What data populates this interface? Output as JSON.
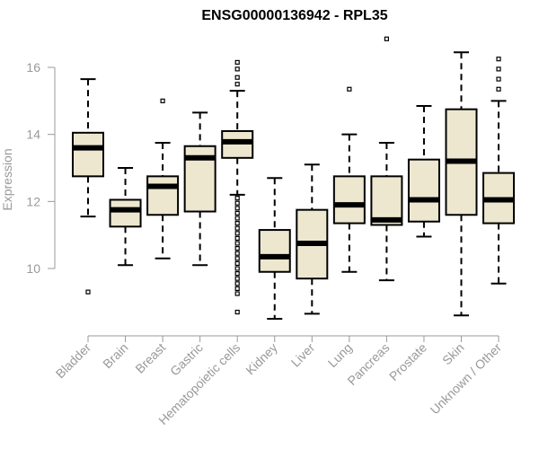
{
  "chart_data": {
    "type": "boxplot",
    "title": "ENSG00000136942 - RPL35",
    "xlabel": "",
    "ylabel": "Expression",
    "ylim": [
      8.4,
      17.0
    ],
    "yticks": [
      10,
      12,
      14,
      16
    ],
    "box_fill": "#ede7cf",
    "categories": [
      "Bladder",
      "Brain",
      "Breast",
      "Gastric",
      "Hematopoietic cells",
      "Kidney",
      "Liver",
      "Lung",
      "Pancreas",
      "Prostate",
      "Skin",
      "Unknown / Other"
    ],
    "boxes": [
      {
        "name": "Bladder",
        "whisker_low": 11.55,
        "q1": 12.75,
        "median": 13.6,
        "q3": 14.05,
        "whisker_high": 15.65,
        "outliers": [
          9.3
        ]
      },
      {
        "name": "Brain",
        "whisker_low": 10.1,
        "q1": 11.25,
        "median": 11.75,
        "q3": 12.05,
        "whisker_high": 13.0,
        "outliers": []
      },
      {
        "name": "Breast",
        "whisker_low": 10.3,
        "q1": 11.6,
        "median": 12.45,
        "q3": 12.75,
        "whisker_high": 13.75,
        "outliers": [
          15.0
        ]
      },
      {
        "name": "Gastric",
        "whisker_low": 10.1,
        "q1": 11.7,
        "median": 13.3,
        "q3": 13.65,
        "whisker_high": 14.65,
        "outliers": []
      },
      {
        "name": "Hematopoietic cells",
        "whisker_low": 12.2,
        "q1": 13.3,
        "median": 13.78,
        "q3": 14.1,
        "whisker_high": 15.3,
        "outliers": [
          16.15,
          15.95,
          15.7,
          15.5,
          12.1,
          11.95,
          11.8,
          11.65,
          11.5,
          11.35,
          11.2,
          11.05,
          10.9,
          10.75,
          10.6,
          10.45,
          10.3,
          10.15,
          10.0,
          9.85,
          9.7,
          9.55,
          9.4,
          9.25,
          8.7
        ]
      },
      {
        "name": "Kidney",
        "whisker_low": 8.5,
        "q1": 9.9,
        "median": 10.35,
        "q3": 11.15,
        "whisker_high": 12.7,
        "outliers": []
      },
      {
        "name": "Liver",
        "whisker_low": 8.65,
        "q1": 9.7,
        "median": 10.75,
        "q3": 11.75,
        "whisker_high": 13.1,
        "outliers": []
      },
      {
        "name": "Lung",
        "whisker_low": 9.9,
        "q1": 11.35,
        "median": 11.9,
        "q3": 12.75,
        "whisker_high": 14.0,
        "outliers": [
          15.35
        ]
      },
      {
        "name": "Pancreas",
        "whisker_low": 9.65,
        "q1": 11.3,
        "median": 11.45,
        "q3": 12.75,
        "whisker_high": 13.75,
        "outliers": [
          16.85
        ]
      },
      {
        "name": "Prostate",
        "whisker_low": 10.95,
        "q1": 11.4,
        "median": 12.05,
        "q3": 13.25,
        "whisker_high": 14.85,
        "outliers": []
      },
      {
        "name": "Skin",
        "whisker_low": 8.6,
        "q1": 11.6,
        "median": 13.2,
        "q3": 14.75,
        "whisker_high": 16.45,
        "outliers": []
      },
      {
        "name": "Unknown / Other",
        "whisker_low": 9.55,
        "q1": 11.35,
        "median": 12.05,
        "q3": 12.85,
        "whisker_high": 15.0,
        "outliers": [
          16.25,
          15.95,
          15.65,
          15.35
        ]
      }
    ]
  }
}
